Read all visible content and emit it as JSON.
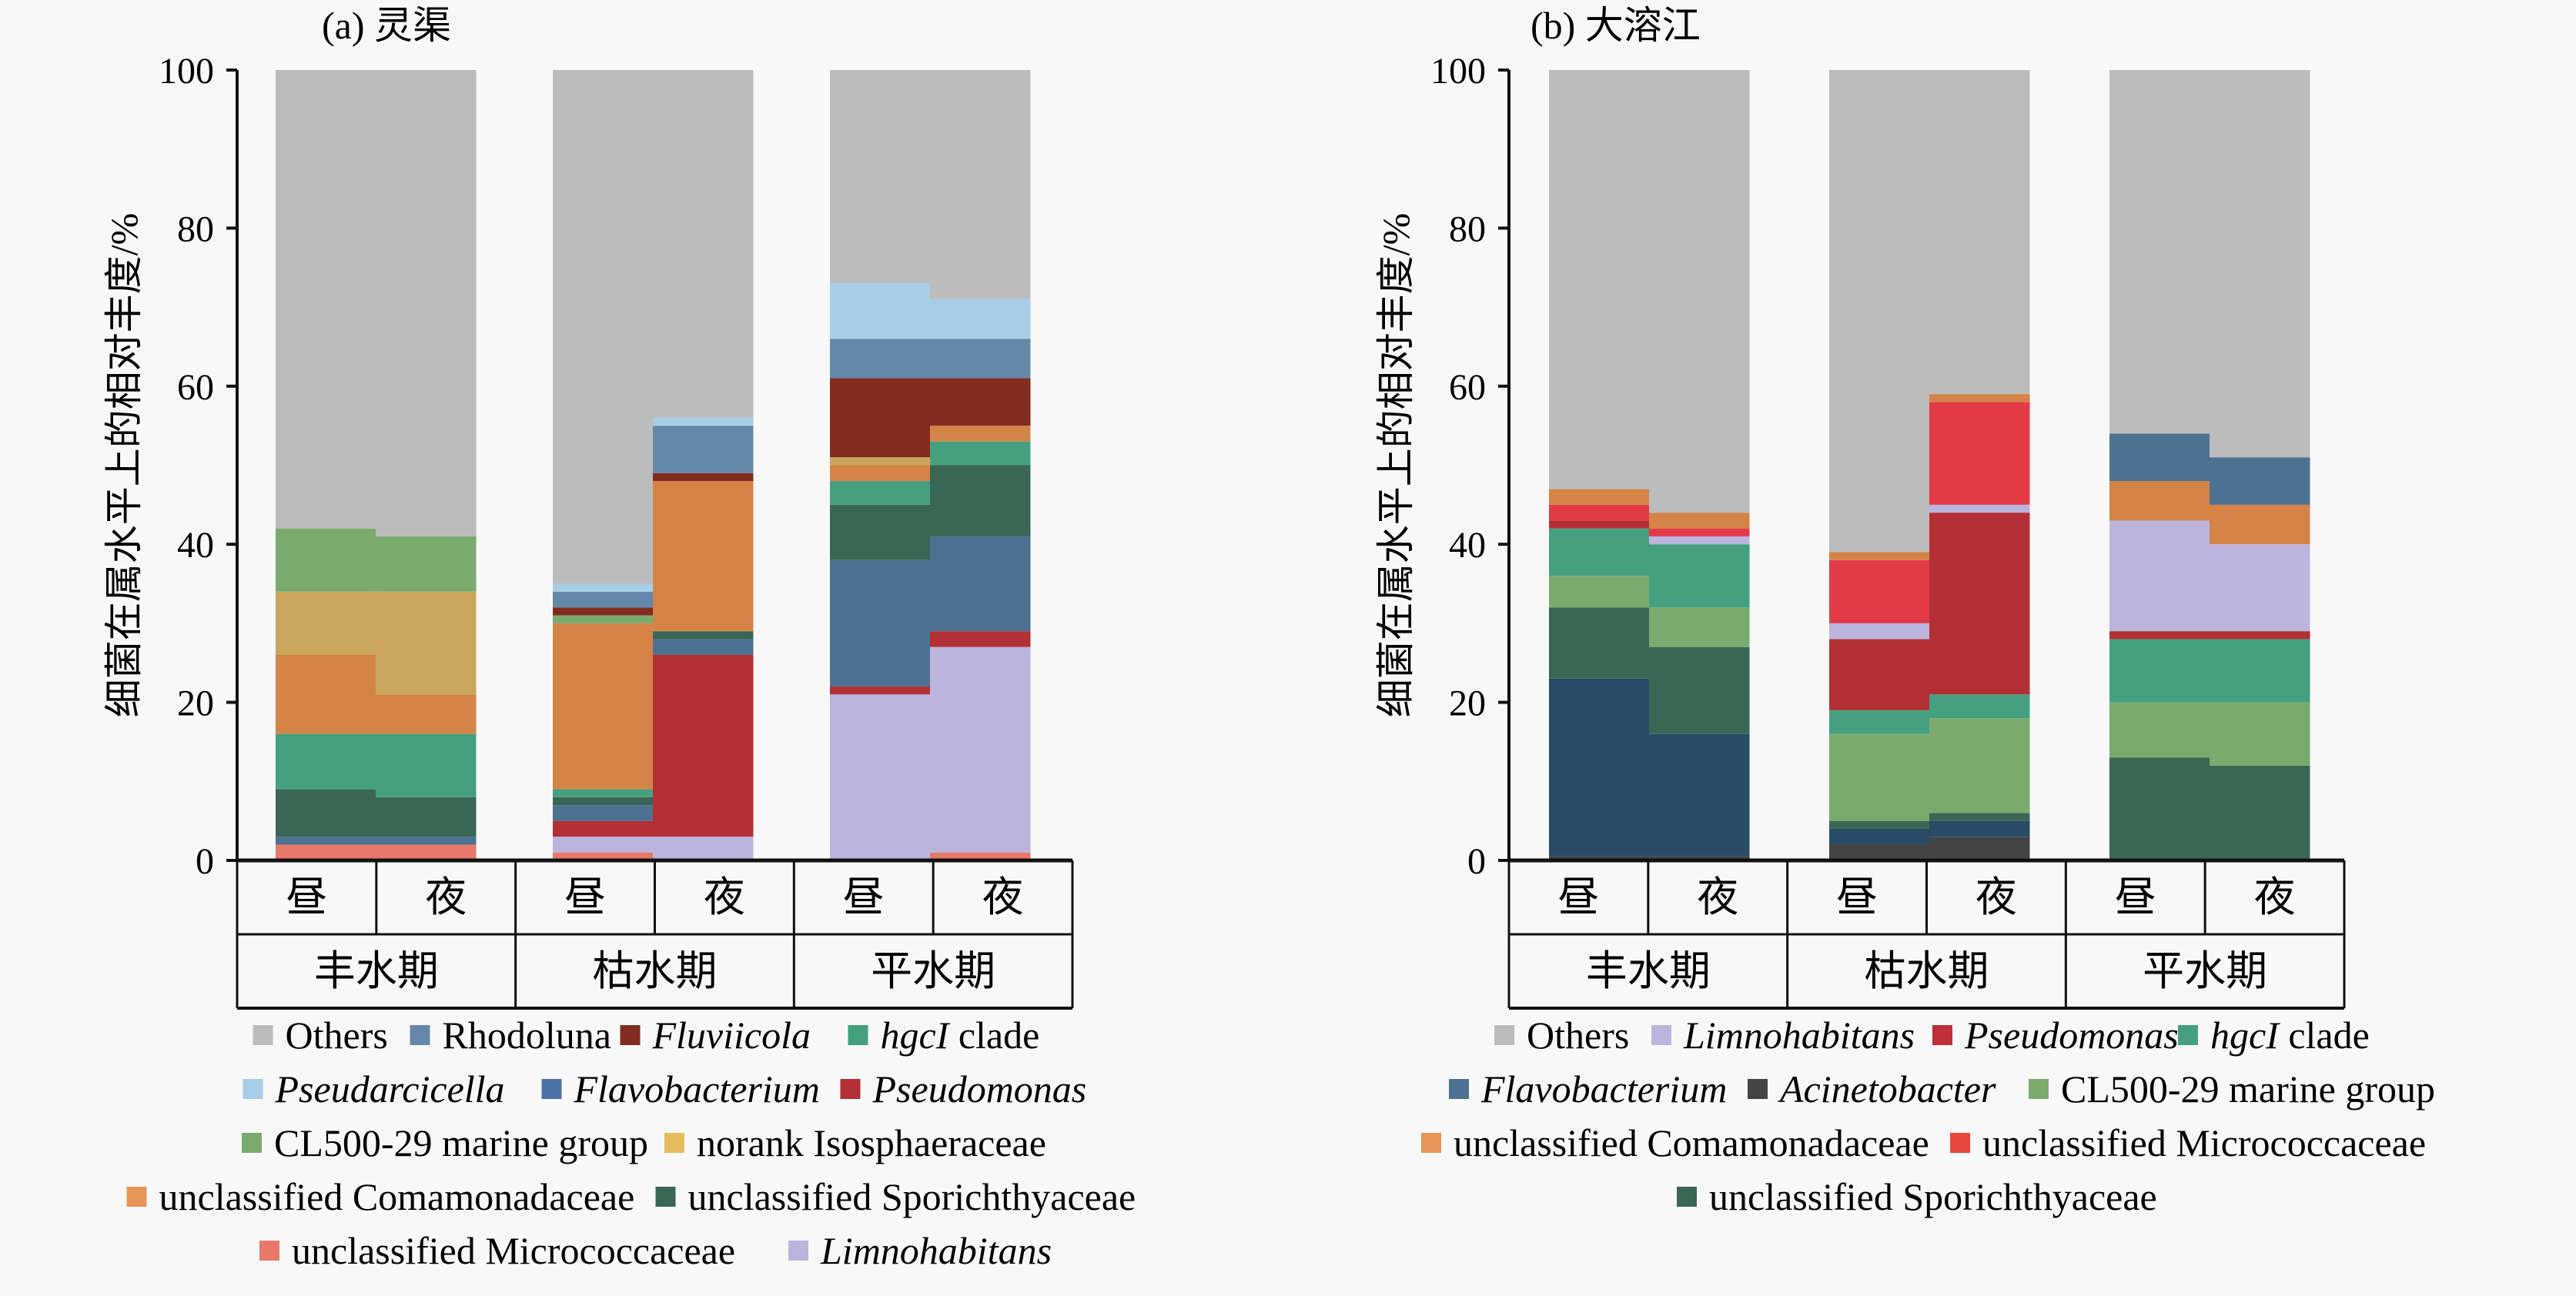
{
  "chart_data": [
    {
      "type": "bar",
      "stacked": true,
      "title": "(a) 灵渠",
      "ylabel": "细菌在属水平上的相对丰度/%",
      "xlabel": "",
      "ylim": [
        0,
        100
      ],
      "yticks": [
        0,
        20,
        40,
        60,
        80,
        100
      ],
      "categories": [
        "昼",
        "夜",
        "昼",
        "夜",
        "昼",
        "夜"
      ],
      "groups": [
        "丰水期",
        "枯水期",
        "平水期"
      ],
      "legend_position": "bottom",
      "series": [
        {
          "name": "unclassified Micrococcaceae",
          "italic": false,
          "color": "#e8786a",
          "values": [
            2,
            2,
            1,
            0,
            0,
            1
          ]
        },
        {
          "name": "Limnohabitans",
          "italic": true,
          "color": "#bbb5dd",
          "values": [
            0,
            0,
            2,
            3,
            21,
            26
          ]
        },
        {
          "name": "Pseudomonas",
          "italic": true,
          "color": "#b33035",
          "values": [
            0,
            0,
            2,
            23,
            1,
            2
          ]
        },
        {
          "name": "Flavobacterium",
          "italic": true,
          "color": "#4d7191",
          "values": [
            1,
            1,
            2,
            2,
            16,
            12
          ]
        },
        {
          "name": "unclassified Sporichthyaceae",
          "italic": false,
          "color": "#3a6656",
          "values": [
            6,
            5,
            1,
            1,
            7,
            9
          ]
        },
        {
          "name": "hgcI clade",
          "italic": true,
          "color": "#45a080",
          "values": [
            7,
            8,
            1,
            0,
            3,
            3
          ]
        },
        {
          "name": "unclassified Comamonadaceae",
          "italic": false,
          "color": "#d48447",
          "values": [
            10,
            5,
            21,
            19,
            2,
            2
          ]
        },
        {
          "name": "norank Isosphaeraceae",
          "italic": false,
          "color": "#c9a65c",
          "values": [
            8,
            13,
            0,
            0,
            1,
            0
          ]
        },
        {
          "name": "CL500-29 marine group",
          "italic": false,
          "color": "#7aab6e",
          "values": [
            8,
            7,
            1,
            0,
            0,
            0
          ]
        },
        {
          "name": "Fluviicola",
          "italic": true,
          "color": "#822c20",
          "values": [
            0,
            0,
            1,
            1,
            10,
            6
          ]
        },
        {
          "name": "Rhodoluna",
          "italic": false,
          "color": "#6488a8",
          "values": [
            0,
            0,
            2,
            6,
            5,
            5
          ]
        },
        {
          "name": "Pseudarcicella",
          "italic": true,
          "color": "#a8cde6",
          "values": [
            0,
            0,
            1,
            1,
            7,
            5
          ]
        },
        {
          "name": "Others",
          "italic": false,
          "color": "#bcbcbc",
          "values": [
            58,
            59,
            65,
            44,
            27,
            29
          ]
        }
      ],
      "legend": [
        "Others",
        "Rhodoluna",
        "Fluviicola",
        "hgcI clade",
        "Pseudarcicella",
        "Flavobacterium",
        "Pseudomonas",
        "CL500-29 marine group",
        "norank Isosphaeraceae",
        "unclassified Comamonadaceae",
        "unclassified Sporichthyaceae",
        "unclassified Micrococcaceae",
        "Limnohabitans"
      ],
      "legend_rows": [
        [
          0,
          1,
          2,
          3
        ],
        [
          4,
          5,
          6
        ],
        [
          7,
          8
        ],
        [
          9,
          10
        ],
        [
          11,
          12
        ]
      ]
    },
    {
      "type": "bar",
      "stacked": true,
      "title": "(b) 大溶江",
      "ylabel": "细菌在属水平上的相对丰度/%",
      "xlabel": "",
      "ylim": [
        0,
        100
      ],
      "yticks": [
        0,
        20,
        40,
        60,
        80,
        100
      ],
      "categories": [
        "昼",
        "夜",
        "昼",
        "夜",
        "昼",
        "夜"
      ],
      "groups": [
        "丰水期",
        "枯水期",
        "平水期"
      ],
      "legend_position": "bottom",
      "series": [
        {
          "name": "Acinetobacter",
          "italic": true,
          "color": "#444444",
          "values": [
            0.5,
            0.5,
            2,
            3,
            0,
            0
          ]
        },
        {
          "name": "Flavobacterium",
          "italic": true,
          "color": "#284c66",
          "values": [
            22.5,
            15.5,
            2,
            2,
            0,
            0
          ]
        },
        {
          "name": "unclassified Sporichthyaceae",
          "italic": false,
          "color": "#3a6656",
          "values": [
            9,
            11,
            1,
            1,
            13,
            12
          ]
        },
        {
          "name": "CL500-29 marine group",
          "italic": false,
          "color": "#7aab6e",
          "values": [
            4,
            5,
            11,
            12,
            7,
            8
          ]
        },
        {
          "name": "hgcI clade",
          "italic": true,
          "color": "#45a080",
          "values": [
            6,
            8,
            3,
            3,
            8,
            8
          ]
        },
        {
          "name": "Pseudomonas",
          "italic": true,
          "color": "#b33035",
          "values": [
            1,
            0,
            9,
            23,
            1,
            1
          ]
        },
        {
          "name": "Limnohabitans",
          "italic": true,
          "color": "#bbb5dd",
          "values": [
            0,
            1,
            2,
            1,
            14,
            11
          ]
        },
        {
          "name": "unclassified Micrococcaceae",
          "italic": false,
          "color": "#e33a48",
          "values": [
            2,
            1,
            8,
            13,
            0,
            0
          ]
        },
        {
          "name": "unclassified Comamonadaceae",
          "italic": false,
          "color": "#d48447",
          "values": [
            2,
            2,
            1,
            1,
            5,
            5
          ]
        },
        {
          "name": "Flavobacterium (upper)",
          "italic": true,
          "color": "#4d7191",
          "values": [
            0,
            0,
            0,
            0,
            6,
            6
          ]
        },
        {
          "name": "Others",
          "italic": false,
          "color": "#bcbcbc",
          "values": [
            53,
            56,
            61,
            41,
            46,
            49
          ]
        }
      ],
      "legend": [
        "Others",
        "Limnohabitans",
        "Pseudomonas",
        "hgcI clade",
        "Flavobacterium",
        "Acinetobacter",
        "CL500-29 marine group",
        "unclassified Comamonadaceae",
        "unclassified Micrococcaceae",
        "unclassified Sporichthyaceae"
      ],
      "legend_rows": [
        [
          0,
          1,
          2,
          3
        ],
        [
          4,
          5,
          6
        ],
        [
          7,
          8
        ],
        [
          9
        ]
      ],
      "legend_colors": [
        "#bcbcbc",
        "#bbb5dd",
        "#c0303a",
        "#45a080",
        "#4d7191",
        "#444444",
        "#7aab6e",
        "#e8955a",
        "#e8473f",
        "#3a6656"
      ]
    }
  ],
  "legend_colors_a": [
    "#bcbcbc",
    "#6488a8",
    "#822c20",
    "#45a080",
    "#a8cde6",
    "#4d72a8",
    "#b33035",
    "#7aab6e",
    "#e6bd5c",
    "#e8955a",
    "#3a6656",
    "#e8786a",
    "#bbb5dd"
  ],
  "italic_names": [
    "Fluviicola",
    "hgcI",
    "Pseudarcicella",
    "Flavobacterium",
    "Pseudomonas",
    "Limnohabitans",
    "Acinetobacter"
  ]
}
